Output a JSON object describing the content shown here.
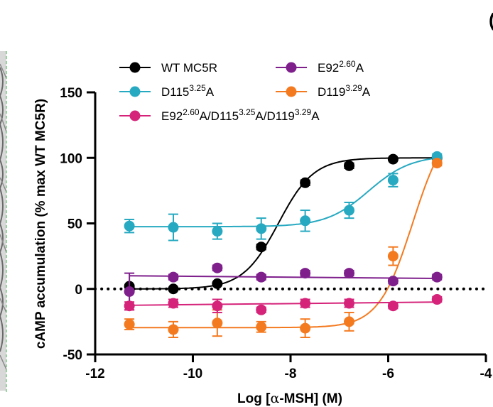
{
  "panel_letter_fragment": "(",
  "chart_data": {
    "type": "scatter",
    "xlabel_pre": "Log [",
    "xlabel_alpha": "α",
    "xlabel_post": "-MSH] (M)",
    "ylabel": "cAMP accumulation (% max WT MC5R)",
    "xlim": [
      -12,
      -4
    ],
    "ylim": [
      -50,
      150
    ],
    "xticks": [
      "-12",
      "-10",
      "-8",
      "-6",
      "-4"
    ],
    "yticks": [
      "-50",
      "0",
      "50",
      "100",
      "150"
    ],
    "xtick_values": [
      -12,
      -10,
      -8,
      -6,
      -4
    ],
    "ytick_values": [
      -50,
      0,
      50,
      100,
      150
    ],
    "legend_placement": "top",
    "colors": {
      "wt": "#000000",
      "d115": "#27a9c1",
      "e92": "#7e1f8c",
      "d119": "#f47a20",
      "triple": "#d5237a",
      "axis": "#000000"
    },
    "series": [
      {
        "key": "wt",
        "legend_base": "WT MC5R",
        "legend_parts": [],
        "x": [
          -11.3,
          -10.4,
          -9.5,
          -8.6,
          -7.7,
          -6.8,
          -5.9,
          -5.0
        ],
        "y": [
          2,
          0,
          4,
          32,
          81,
          94,
          99,
          100
        ],
        "error": [
          1,
          1,
          1,
          2,
          2,
          2,
          1,
          1
        ],
        "fit": {
          "bottom": 0,
          "top": 100,
          "logec50": -8.25,
          "hill": 1.2
        }
      },
      {
        "key": "e92",
        "legend_base": "E92",
        "legend_parts": [
          {
            "sup": "2.60",
            "text": "A"
          }
        ],
        "x": [
          -11.3,
          -10.4,
          -9.5,
          -8.6,
          -7.7,
          -6.8,
          -5.9,
          -5.0
        ],
        "y": [
          -2,
          9,
          16,
          9,
          12,
          12,
          6,
          9
        ],
        "error": [
          14,
          2,
          2,
          2,
          2,
          2,
          2,
          2
        ],
        "fit": {
          "line": [
            [
              -11.3,
              10
            ],
            [
              -5.0,
              8
            ]
          ]
        }
      },
      {
        "key": "d115",
        "legend_base": "D115",
        "legend_parts": [
          {
            "sup": "3.25",
            "text": "A"
          }
        ],
        "x": [
          -11.3,
          -10.4,
          -9.5,
          -8.6,
          -7.7,
          -6.8,
          -5.9,
          -5.0
        ],
        "y": [
          48,
          47,
          44,
          46,
          52,
          60,
          83,
          101
        ],
        "error": [
          5,
          10,
          6,
          8,
          8,
          6,
          5,
          2
        ],
        "fit": {
          "bottom": 47.5,
          "top": 102,
          "logec50": -6.4,
          "hill": 1.0
        }
      },
      {
        "key": "d119",
        "legend_base": "D119",
        "legend_parts": [
          {
            "sup": "3.29",
            "text": "A"
          }
        ],
        "x": [
          -11.3,
          -10.4,
          -9.5,
          -8.6,
          -7.7,
          -6.8,
          -5.9,
          -5.0
        ],
        "y": [
          -27,
          -31,
          -26,
          -29,
          -30,
          -25,
          25,
          96
        ],
        "error": [
          4,
          6,
          10,
          4,
          7,
          7,
          7,
          2
        ],
        "fit": {
          "bottom": -29.5,
          "top": 130,
          "logec50": -5.5,
          "hill": 1.25
        }
      },
      {
        "key": "triple",
        "legend_base": "E92",
        "legend_parts": [
          {
            "sup": "2.60",
            "text": "A/D115"
          },
          {
            "sup": "3.25",
            "text": "A/D119"
          },
          {
            "sup": "3.29",
            "text": "A"
          }
        ],
        "x": [
          -11.3,
          -10.4,
          -9.5,
          -8.6,
          -7.7,
          -6.8,
          -5.9,
          -5.0
        ],
        "y": [
          -13,
          -11,
          -13,
          -16,
          -11,
          -11,
          -13,
          -8
        ],
        "error": [
          3,
          3,
          5,
          2,
          3,
          3,
          2,
          2
        ],
        "fit": {
          "line": [
            [
              -11.3,
              -12.5
            ],
            [
              -5.0,
              -10
            ]
          ]
        }
      }
    ]
  }
}
